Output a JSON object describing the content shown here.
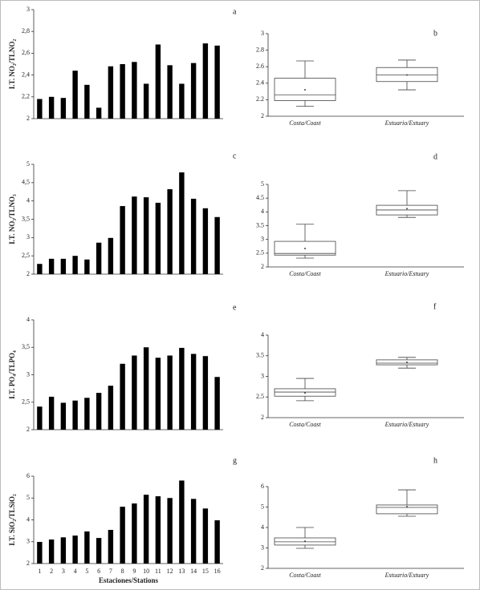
{
  "chart_data": [
    {
      "type": "bar",
      "label": "a",
      "ylabel": "I.T. NO₂/TLNO₂",
      "color": "#000000",
      "categories": [
        null,
        null,
        null,
        null,
        null,
        null,
        null,
        null,
        null,
        null,
        null,
        null,
        null,
        null,
        null,
        null
      ],
      "values": [
        2.18,
        2.2,
        2.19,
        2.44,
        2.31,
        2.1,
        2.48,
        2.5,
        2.52,
        2.32,
        2.68,
        2.49,
        2.32,
        2.51,
        2.69,
        2.67
      ],
      "ylim": [
        2,
        3
      ],
      "yticks": [
        2,
        {
          "value": 2.2,
          "label": "2,2"
        },
        {
          "value": 2.4,
          "label": "2,4"
        },
        {
          "value": 2.6,
          "label": "2,6"
        },
        {
          "value": 2.8,
          "label": "2,8"
        },
        3
      ]
    },
    {
      "type": "box",
      "label": "b",
      "categories": [
        "Costa/Coast",
        "Estuario/Estuary"
      ],
      "boxes": [
        {
          "whislo": 2.12,
          "q1": 2.19,
          "med": 2.26,
          "q3": 2.46,
          "whishi": 2.67,
          "mean": 2.32
        },
        {
          "whislo": 2.32,
          "q1": 2.42,
          "med": 2.5,
          "q3": 2.59,
          "whishi": 2.68,
          "mean": 2.5
        }
      ],
      "ylim": [
        2,
        3
      ],
      "yticks": [
        2,
        2.2,
        2.4,
        2.6,
        2.8,
        3
      ]
    },
    {
      "type": "bar",
      "label": "c",
      "ylabel": "I.T. NO₃/TLNO₃",
      "color": "#000000",
      "categories": [
        null,
        null,
        null,
        null,
        null,
        null,
        null,
        null,
        null,
        null,
        null,
        null,
        null,
        null,
        null,
        null
      ],
      "values": [
        2.28,
        2.42,
        2.42,
        2.5,
        2.4,
        2.86,
        2.99,
        3.86,
        4.12,
        4.1,
        3.95,
        4.32,
        4.78,
        4.06,
        3.8,
        3.56
      ],
      "ylim": [
        2,
        5
      ],
      "yticks": [
        2,
        {
          "value": 2.5,
          "label": "2,5"
        },
        3,
        {
          "value": 3.5,
          "label": "3,5"
        },
        4,
        {
          "value": 4.5,
          "label": "4,5"
        },
        5
      ]
    },
    {
      "type": "box",
      "label": "d",
      "categories": [
        "Costa/Coast",
        "Estuario/Estuary"
      ],
      "boxes": [
        {
          "whislo": 2.32,
          "q1": 2.43,
          "med": 2.49,
          "q3": 2.93,
          "whishi": 3.55,
          "mean": 2.67
        },
        {
          "whislo": 3.8,
          "q1": 3.89,
          "med": 4.07,
          "q3": 4.24,
          "whishi": 4.77,
          "mean": 4.12
        }
      ],
      "ylim": [
        2,
        5
      ],
      "yticks": [
        2,
        2.5,
        3,
        3.5,
        4,
        4.5,
        5
      ]
    },
    {
      "type": "bar",
      "label": "e",
      "ylabel": "I.T. PO₄/TLPO₄",
      "color": "#000000",
      "categories": [
        null,
        null,
        null,
        null,
        null,
        null,
        null,
        null,
        null,
        null,
        null,
        null,
        null,
        null,
        null,
        null
      ],
      "values": [
        2.42,
        2.6,
        2.49,
        2.53,
        2.58,
        2.67,
        2.8,
        3.2,
        3.35,
        3.5,
        3.31,
        3.35,
        3.49,
        3.38,
        3.34,
        2.96
      ],
      "ylim": [
        2,
        4
      ],
      "yticks": [
        2,
        {
          "value": 2.5,
          "label": "2,5"
        },
        3,
        {
          "value": 3.5,
          "label": "3,5"
        },
        4
      ]
    },
    {
      "type": "box",
      "label": "f",
      "categories": [
        "Costa/Coast",
        "Estuario/Estuary"
      ],
      "boxes": [
        {
          "whislo": 2.41,
          "q1": 2.52,
          "med": 2.62,
          "q3": 2.7,
          "whishi": 2.95,
          "mean": 2.6
        },
        {
          "whislo": 3.2,
          "q1": 3.28,
          "med": 3.32,
          "q3": 3.4,
          "whishi": 3.46,
          "mean": 3.34
        }
      ],
      "ylim": [
        2,
        4
      ],
      "yticks": [
        2,
        2.5,
        3,
        3.5,
        4
      ]
    },
    {
      "type": "bar",
      "label": "g",
      "ylabel": "I.T. SiO₂/TLSiO₂",
      "xlabel": "Estaciones/Stations",
      "color": "#000000",
      "categories": [
        1,
        2,
        3,
        4,
        5,
        6,
        7,
        8,
        9,
        10,
        11,
        12,
        13,
        14,
        15,
        16
      ],
      "values": [
        2.99,
        3.1,
        3.2,
        3.28,
        3.47,
        3.17,
        3.54,
        4.6,
        4.75,
        5.15,
        5.08,
        5.0,
        5.8,
        4.96,
        4.52,
        3.98
      ],
      "ylim": [
        2,
        6
      ],
      "yticks": [
        2,
        3,
        4,
        5,
        6
      ]
    },
    {
      "type": "box",
      "label": "h",
      "categories": [
        "Costa/Coast",
        "Estuario/Estuary"
      ],
      "boxes": [
        {
          "whislo": 2.98,
          "q1": 3.14,
          "med": 3.3,
          "q3": 3.49,
          "whishi": 4.0,
          "mean": 3.33
        },
        {
          "whislo": 4.55,
          "q1": 4.67,
          "med": 4.98,
          "q3": 5.1,
          "whishi": 5.84,
          "mean": 5.02
        }
      ],
      "ylim": [
        2,
        6
      ],
      "yticks": [
        2,
        3,
        4,
        5,
        6
      ]
    }
  ]
}
